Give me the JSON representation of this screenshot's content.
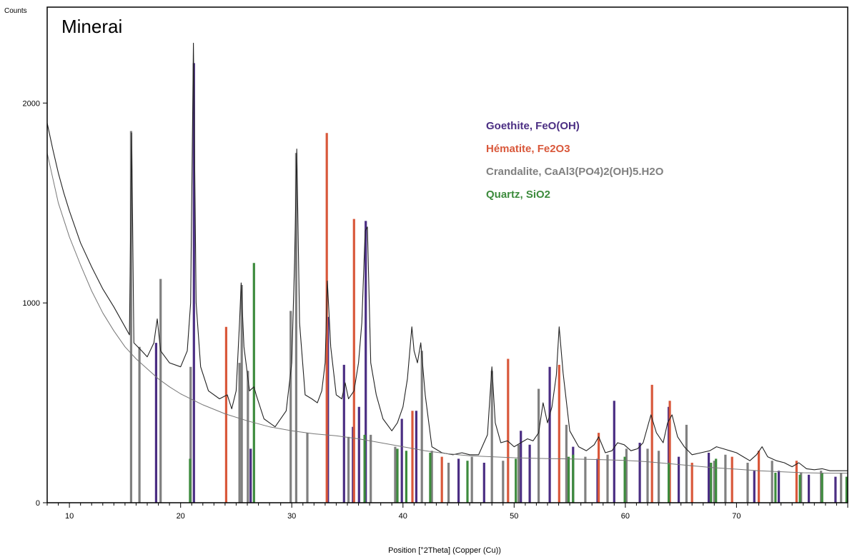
{
  "chart_data": {
    "type": "line",
    "title": "Minerai",
    "xlabel": "Position [°2Theta] (Copper (Cu))",
    "ylabel": "Counts",
    "xlim": [
      8,
      80
    ],
    "ylim": [
      0,
      2480
    ],
    "x_ticks": [
      10,
      20,
      30,
      40,
      50,
      60,
      70
    ],
    "y_ticks": [
      0,
      1000,
      2000
    ],
    "grid": false,
    "legend_position": "top-right",
    "series": [
      {
        "name": "Minerai",
        "color": "#222222",
        "points": [
          [
            8.0,
            1900
          ],
          [
            8.5,
            1770
          ],
          [
            9.0,
            1650
          ],
          [
            9.5,
            1550
          ],
          [
            10.0,
            1460
          ],
          [
            11.0,
            1300
          ],
          [
            12.0,
            1180
          ],
          [
            13.0,
            1070
          ],
          [
            14.0,
            980
          ],
          [
            15.0,
            880
          ],
          [
            15.4,
            840
          ],
          [
            15.6,
            1850
          ],
          [
            15.8,
            800
          ],
          [
            16.5,
            760
          ],
          [
            17.0,
            730
          ],
          [
            17.6,
            800
          ],
          [
            17.9,
            920
          ],
          [
            18.2,
            760
          ],
          [
            19.0,
            700
          ],
          [
            20.0,
            680
          ],
          [
            20.6,
            760
          ],
          [
            20.9,
            1000
          ],
          [
            21.15,
            2300
          ],
          [
            21.4,
            1000
          ],
          [
            21.8,
            680
          ],
          [
            22.5,
            560
          ],
          [
            23.5,
            520
          ],
          [
            24.2,
            540
          ],
          [
            24.6,
            470
          ],
          [
            25.0,
            560
          ],
          [
            25.3,
            900
          ],
          [
            25.45,
            1100
          ],
          [
            25.7,
            780
          ],
          [
            26.2,
            560
          ],
          [
            26.6,
            580
          ],
          [
            26.8,
            540
          ],
          [
            27.5,
            420
          ],
          [
            28.5,
            380
          ],
          [
            29.5,
            460
          ],
          [
            30.0,
            700
          ],
          [
            30.25,
            1200
          ],
          [
            30.45,
            1770
          ],
          [
            30.7,
            900
          ],
          [
            31.2,
            540
          ],
          [
            31.8,
            520
          ],
          [
            32.3,
            500
          ],
          [
            32.7,
            560
          ],
          [
            33.0,
            700
          ],
          [
            33.2,
            1110
          ],
          [
            33.5,
            780
          ],
          [
            34.0,
            540
          ],
          [
            34.5,
            520
          ],
          [
            34.8,
            600
          ],
          [
            35.1,
            520
          ],
          [
            35.6,
            560
          ],
          [
            36.0,
            700
          ],
          [
            36.3,
            900
          ],
          [
            36.6,
            1360
          ],
          [
            36.8,
            1380
          ],
          [
            37.1,
            700
          ],
          [
            37.6,
            540
          ],
          [
            38.2,
            420
          ],
          [
            39.0,
            360
          ],
          [
            39.5,
            400
          ],
          [
            40.0,
            480
          ],
          [
            40.4,
            620
          ],
          [
            40.8,
            880
          ],
          [
            41.0,
            760
          ],
          [
            41.3,
            700
          ],
          [
            41.6,
            800
          ],
          [
            42.0,
            540
          ],
          [
            42.6,
            280
          ],
          [
            43.5,
            250
          ],
          [
            44.5,
            240
          ],
          [
            45.3,
            250
          ],
          [
            46.0,
            240
          ],
          [
            46.8,
            240
          ],
          [
            47.6,
            340
          ],
          [
            48.0,
            680
          ],
          [
            48.3,
            400
          ],
          [
            48.8,
            300
          ],
          [
            49.4,
            310
          ],
          [
            50.0,
            280
          ],
          [
            50.6,
            300
          ],
          [
            51.2,
            320
          ],
          [
            51.7,
            310
          ],
          [
            52.2,
            350
          ],
          [
            52.6,
            500
          ],
          [
            53.0,
            400
          ],
          [
            53.4,
            480
          ],
          [
            53.8,
            640
          ],
          [
            54.05,
            880
          ],
          [
            54.4,
            650
          ],
          [
            55.0,
            360
          ],
          [
            55.8,
            280
          ],
          [
            56.5,
            260
          ],
          [
            57.2,
            290
          ],
          [
            57.6,
            330
          ],
          [
            58.2,
            250
          ],
          [
            58.8,
            260
          ],
          [
            59.3,
            300
          ],
          [
            59.9,
            290
          ],
          [
            60.5,
            260
          ],
          [
            61.1,
            270
          ],
          [
            61.6,
            300
          ],
          [
            62.3,
            440
          ],
          [
            62.8,
            350
          ],
          [
            63.4,
            300
          ],
          [
            63.8,
            400
          ],
          [
            64.2,
            440
          ],
          [
            64.7,
            330
          ],
          [
            65.3,
            280
          ],
          [
            66.0,
            240
          ],
          [
            66.8,
            250
          ],
          [
            67.6,
            260
          ],
          [
            68.2,
            280
          ],
          [
            68.8,
            270
          ],
          [
            69.4,
            260
          ],
          [
            70.0,
            250
          ],
          [
            70.6,
            230
          ],
          [
            71.2,
            210
          ],
          [
            71.8,
            240
          ],
          [
            72.3,
            280
          ],
          [
            72.8,
            230
          ],
          [
            73.6,
            210
          ],
          [
            74.3,
            200
          ],
          [
            75.0,
            180
          ],
          [
            75.6,
            200
          ],
          [
            76.3,
            170
          ],
          [
            77.0,
            165
          ],
          [
            77.7,
            170
          ],
          [
            78.4,
            160
          ],
          [
            79.2,
            160
          ],
          [
            80.0,
            160
          ]
        ]
      },
      {
        "name": "Background",
        "color": "#777777",
        "points": [
          [
            8.0,
            1750
          ],
          [
            9.0,
            1500
          ],
          [
            10.0,
            1330
          ],
          [
            11.0,
            1190
          ],
          [
            12.0,
            1060
          ],
          [
            13.0,
            950
          ],
          [
            14.0,
            860
          ],
          [
            15.0,
            780
          ],
          [
            16.0,
            720
          ],
          [
            17.0,
            670
          ],
          [
            18.0,
            620
          ],
          [
            19.0,
            580
          ],
          [
            20.0,
            545
          ],
          [
            22.0,
            490
          ],
          [
            24.0,
            445
          ],
          [
            26.0,
            410
          ],
          [
            28.0,
            380
          ],
          [
            30.0,
            360
          ],
          [
            32.0,
            345
          ],
          [
            34.0,
            335
          ],
          [
            36.0,
            320
          ],
          [
            38.0,
            300
          ],
          [
            40.0,
            280
          ],
          [
            42.0,
            260
          ],
          [
            44.0,
            245
          ],
          [
            46.0,
            235
          ],
          [
            48.0,
            230
          ],
          [
            50.0,
            225
          ],
          [
            52.0,
            222
          ],
          [
            54.0,
            220
          ],
          [
            56.0,
            218
          ],
          [
            58.0,
            215
          ],
          [
            60.0,
            212
          ],
          [
            62.0,
            205
          ],
          [
            64.0,
            195
          ],
          [
            66.0,
            185
          ],
          [
            68.0,
            175
          ],
          [
            70.0,
            168
          ],
          [
            72.0,
            160
          ],
          [
            74.0,
            155
          ],
          [
            76.0,
            150
          ],
          [
            78.0,
            148
          ],
          [
            80.0,
            148
          ]
        ]
      }
    ],
    "reference_phases": [
      {
        "name": "Goethite, FeO(OH)",
        "color": "#4b2e83",
        "peaks": [
          [
            17.8,
            800
          ],
          [
            21.2,
            2200
          ],
          [
            26.3,
            270
          ],
          [
            33.25,
            930
          ],
          [
            34.7,
            690
          ],
          [
            35.5,
            380
          ],
          [
            36.05,
            480
          ],
          [
            36.65,
            1410
          ],
          [
            39.9,
            420
          ],
          [
            41.2,
            460
          ],
          [
            45.0,
            220
          ],
          [
            47.3,
            200
          ],
          [
            50.6,
            360
          ],
          [
            51.4,
            290
          ],
          [
            53.2,
            680
          ],
          [
            55.3,
            280
          ],
          [
            57.5,
            220
          ],
          [
            59.0,
            510
          ],
          [
            61.3,
            300
          ],
          [
            63.9,
            480
          ],
          [
            64.8,
            230
          ],
          [
            67.5,
            250
          ],
          [
            71.6,
            160
          ],
          [
            73.8,
            160
          ],
          [
            76.5,
            140
          ],
          [
            78.9,
            130
          ]
        ]
      },
      {
        "name": "Hématite, Fe2O3",
        "color": "#d9583b",
        "peaks": [
          [
            24.1,
            880
          ],
          [
            33.15,
            1850
          ],
          [
            35.6,
            1420
          ],
          [
            40.85,
            460
          ],
          [
            43.5,
            230
          ],
          [
            49.45,
            720
          ],
          [
            54.05,
            690
          ],
          [
            57.6,
            350
          ],
          [
            62.4,
            590
          ],
          [
            64.0,
            510
          ],
          [
            66.0,
            200
          ],
          [
            69.6,
            230
          ],
          [
            72.0,
            260
          ],
          [
            75.4,
            210
          ]
        ]
      },
      {
        "name": "Crandalite, CaAl3(PO4)2(OH)5.H2O",
        "color": "#808080",
        "peaks": [
          [
            15.55,
            1860
          ],
          [
            16.3,
            780
          ],
          [
            18.2,
            1120
          ],
          [
            20.9,
            680
          ],
          [
            25.3,
            700
          ],
          [
            25.5,
            1090
          ],
          [
            26.05,
            660
          ],
          [
            29.9,
            960
          ],
          [
            30.4,
            1750
          ],
          [
            31.4,
            350
          ],
          [
            35.1,
            330
          ],
          [
            37.1,
            340
          ],
          [
            39.3,
            280
          ],
          [
            41.7,
            760
          ],
          [
            42.6,
            260
          ],
          [
            44.1,
            200
          ],
          [
            46.2,
            230
          ],
          [
            48.0,
            660
          ],
          [
            49.0,
            210
          ],
          [
            50.4,
            290
          ],
          [
            52.2,
            570
          ],
          [
            54.7,
            390
          ],
          [
            56.4,
            230
          ],
          [
            58.4,
            240
          ],
          [
            60.1,
            270
          ],
          [
            62.0,
            270
          ],
          [
            63.0,
            260
          ],
          [
            65.5,
            390
          ],
          [
            68.0,
            210
          ],
          [
            69.0,
            240
          ],
          [
            71.0,
            200
          ],
          [
            73.2,
            210
          ],
          [
            75.8,
            150
          ],
          [
            77.6,
            160
          ],
          [
            79.4,
            150
          ]
        ]
      },
      {
        "name": "Quartz, SiO2",
        "color": "#3d8b3d",
        "peaks": [
          [
            20.85,
            220
          ],
          [
            26.6,
            1200
          ],
          [
            36.55,
            340
          ],
          [
            39.5,
            270
          ],
          [
            40.3,
            260
          ],
          [
            42.45,
            250
          ],
          [
            45.8,
            210
          ],
          [
            50.15,
            220
          ],
          [
            54.9,
            230
          ],
          [
            55.3,
            240
          ],
          [
            59.95,
            230
          ],
          [
            63.9,
            200
          ],
          [
            67.7,
            200
          ],
          [
            68.15,
            220
          ],
          [
            73.5,
            150
          ],
          [
            75.7,
            140
          ],
          [
            77.7,
            150
          ],
          [
            79.9,
            130
          ]
        ]
      }
    ]
  }
}
